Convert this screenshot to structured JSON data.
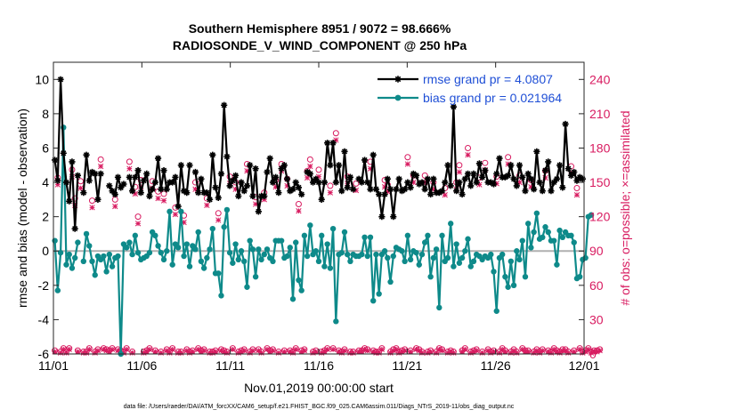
{
  "chart_data": {
    "type": "line",
    "title_line1": "Southern Hemisphere 8951 / 9072 = 98.666%",
    "title_line2": "RADIOSONDE_V_WIND_COMPONENT @ 250 hPa",
    "ylabel_left": "rmse and bias (model - observation)",
    "ylabel_right": "# of obs: o=possible; ×=assimilated",
    "xlabel": "Nov.01,2019 00:00:00 start",
    "footnote": "data file: /Users/raeder/DAI/ATM_forcXX/CAM6_setup/f.e21.FHIST_BGC.f09_025.CAM6assim.011/Diags_NTrS_2019-11/obs_diag_output.nc",
    "colors": {
      "rmse": "#000000",
      "bias": "#0e8a8a",
      "obs": "#d81b60",
      "zero_line": "#b0b0b0"
    },
    "x_ticks": [
      "11/01",
      "11/06",
      "11/11",
      "11/16",
      "11/21",
      "11/26",
      "12/01"
    ],
    "x_tick_days": [
      0,
      5,
      10,
      15,
      20,
      25,
      30
    ],
    "xlim_days": [
      0,
      30
    ],
    "y_left_ticks": [
      "10",
      "8",
      "6",
      "4",
      "2",
      "0",
      "-2",
      "-4",
      "-6"
    ],
    "y_left_values": [
      10,
      8,
      6,
      4,
      2,
      0,
      -2,
      -4,
      -6
    ],
    "ylim_left": [
      -6,
      11
    ],
    "y_right_ticks": [
      "240",
      "210",
      "180",
      "150",
      "120",
      "90",
      "60",
      "30",
      "0"
    ],
    "y_right_values": [
      240,
      210,
      180,
      150,
      120,
      90,
      60,
      30,
      0
    ],
    "ylim_right": [
      0,
      255
    ],
    "legend": [
      {
        "name": "rmse grand pr = 4.0807",
        "series": "rmse"
      },
      {
        "name": "bias grand pr = 0.021964",
        "series": "bias"
      }
    ],
    "series": [
      {
        "name": "rmse",
        "values": [
          5.3,
          4.1,
          10.0,
          5.7,
          4.0,
          2.9,
          5.2,
          1.3,
          4.4,
          null,
          3.4,
          5.6,
          4.1,
          4.6,
          4.5,
          3.0,
          4.5,
          null,
          null,
          3.8,
          3.5,
          3.3,
          4.3,
          3.7,
          3.9,
          null,
          4.3,
          3.5,
          4.3,
          4.7,
          3.4,
          4.1,
          4.5,
          3.2,
          3.6,
          4.0,
          5.4,
          3.6,
          4.7,
          3.6,
          4.0,
          4.0,
          4.3,
          2.6,
          5.0,
          3.5,
          3.4,
          5.0,
          null,
          4.6,
          3.4,
          4.2,
          3.4,
          3.4,
          3.0,
          5.6,
          3.7,
          3.1,
          4.5,
          8.5,
          5.5,
          3.8,
          4.1,
          4.4,
          3.2,
          4.0,
          3.5,
          3.8,
          5.0,
          3.2,
          4.8,
          2.3,
          3.2,
          3.2,
          4.6,
          5.4,
          4.0,
          4.3,
          3.4,
          4.8,
          5.0,
          4.2,
          3.5,
          3.6,
          4.0,
          3.7,
          3.3,
          null,
          4.6,
          4.5,
          4.0,
          4.2,
          4.0,
          3.0,
          4.0,
          6.3,
          5.0,
          6.3,
          4.0,
          5.0,
          3.5,
          5.8,
          3.7,
          4.3,
          3.6,
          null,
          4.2,
          4.0,
          5.3,
          4.0,
          3.6,
          5.6,
          3.6,
          3.3,
          2.0,
          3.3,
          4.2,
          3.6,
          2.0,
          3.6,
          4.2,
          3.5,
          3.6,
          4.0,
          3.7,
          4.5,
          4.4,
          3.9,
          4.0,
          3.6,
          4.2,
          3.3,
          4.2,
          3.4,
          3.4,
          3.5,
          4.0,
          5.0,
          3.8,
          8.4,
          3.5,
          4.0,
          3.3,
          4.2,
          4.5,
          3.8,
          4.5,
          4.0,
          5.1,
          4.3,
          4.7,
          4.0,
          4.0,
          3.9,
          4.5,
          5.4,
          4.3,
          4.3,
          4.4,
          5.0,
          4.2,
          3.8,
          5.0,
          4.3,
          3.5,
          4.5,
          4.2,
          3.6,
          5.8,
          4.0,
          3.5,
          4.7,
          5.2,
          3.5,
          4.0,
          4.2,
          5.0,
          3.7,
          7.4,
          4.8,
          4.4,
          4.6,
          4.1,
          4.3,
          4.2
        ]
      },
      {
        "name": "bias",
        "values": [
          0.6,
          -2.3,
          -0.1,
          7.2,
          -0.8,
          -0.2,
          -1.0,
          -0.4,
          0.5,
          null,
          -0.6,
          1.0,
          0.3,
          -0.6,
          -1.4,
          -0.3,
          -0.5,
          -0.3,
          -1.2,
          -0.2,
          -0.9,
          -0.4,
          -0.3,
          -6.0,
          0.4,
          0.2,
          0.5,
          -0.2,
          0.9,
          -0.1,
          -0.5,
          -0.4,
          -0.3,
          -0.1,
          1.1,
          0.9,
          0.3,
          -0.1,
          -0.5,
          0.0,
          2.3,
          -0.8,
          0.4,
          0.2,
          2.3,
          -0.3,
          0.4,
          -0.9,
          0.3,
          0.1,
          1.1,
          -0.6,
          -1.0,
          -0.4,
          0.1,
          1.3,
          -1.3,
          -1.3,
          -2.6,
          1.4,
          2.4,
          -0.1,
          -0.7,
          0.4,
          -0.5,
          0.0,
          -0.6,
          -2.1,
          0.6,
          0.1,
          -1.5,
          0.1,
          -0.5,
          -0.2,
          0.1,
          -0.4,
          -0.6,
          0.6,
          0.6,
          0.6,
          -0.4,
          -0.3,
          0.2,
          -2.8,
          0.5,
          -1.7,
          -2.3,
          0.9,
          -0.3,
          1.5,
          -0.2,
          0.0,
          -0.6,
          0.9,
          -0.9,
          0.4,
          -1.0,
          1.3,
          -4.1,
          -0.2,
          -0.1,
          1.1,
          -0.2,
          -0.6,
          -0.2,
          -0.3,
          -0.3,
          -0.2,
          0.8,
          -0.3,
          0.8,
          -2.9,
          -0.2,
          -2.5,
          -0.2,
          0.0,
          -0.4,
          -1.8,
          -0.3,
          0.2,
          0.1,
          0.0,
          -0.6,
          0.9,
          -0.5,
          0.0,
          -0.1,
          -0.8,
          -0.2,
          0.5,
          0.9,
          -1.5,
          -0.4,
          0.1,
          -3.3,
          0.9,
          -0.6,
          -0.4,
          1.6,
          -0.9,
          0.4,
          -0.7,
          -0.4,
          0.0,
          0.7,
          -0.9,
          -0.6,
          -0.2,
          -0.3,
          -0.5,
          -0.3,
          -0.4,
          -0.2,
          -1.2,
          -3.5,
          -0.4,
          -0.2,
          -1.5,
          -2.1,
          -0.6,
          -2.0,
          0.0,
          -0.5,
          0.6,
          -1.5,
          1.6,
          0.2,
          1.1,
          2.2,
          0.7,
          0.8,
          1.4,
          1.1,
          0.6,
          0.6,
          -0.8,
          1.2,
          0.8,
          1.1,
          0.9,
          0.9,
          0.5,
          -1.6,
          -1.5,
          -0.5,
          -0.4,
          2.0,
          2.1
        ]
      },
      {
        "name": "obs_possible",
        "values": [
          3,
          154,
          2,
          5,
          2,
          5,
          161,
          136,
          3,
          151,
          2,
          2,
          5,
          134,
          2,
          4,
          170,
          5,
          4,
          3,
          5,
          135,
          4,
          3,
          2,
          5,
          168,
          2,
          146,
          120,
          152,
          2,
          3,
          5,
          151,
          3,
          142,
          2,
          140,
          4,
          2,
          5,
          128,
          2,
          2,
          121,
          4,
          2,
          3,
          150,
          5,
          3,
          4,
          136,
          2,
          2,
          3,
          123,
          4,
          3,
          2,
          155,
          5,
          150,
          2,
          3,
          4,
          166,
          2,
          4,
          137,
          4,
          2,
          141,
          5,
          3,
          4,
          152,
          2,
          166,
          3,
          153,
          3,
          2,
          5,
          131,
          3,
          4,
          160,
          170,
          2,
          3,
          161,
          2,
          3,
          5,
          147,
          5,
          193,
          3,
          2,
          4,
          155,
          2,
          2,
          149,
          3,
          3,
          5,
          4,
          168,
          3,
          2,
          2,
          5,
          152,
          148,
          2,
          4,
          5,
          2,
          3,
          4,
          172,
          3,
          156,
          5,
          4,
          2,
          156,
          2,
          3,
          150,
          2,
          5,
          4,
          145,
          2,
          3,
          2,
          150,
          165,
          3,
          5,
          180,
          2,
          3,
          4,
          154,
          2,
          167,
          4,
          2,
          3,
          155,
          2,
          5,
          3,
          172,
          2,
          4,
          2,
          156,
          5,
          3,
          3,
          152,
          2,
          4,
          2,
          4,
          160,
          3,
          2,
          5,
          3,
          2,
          4,
          4,
          2,
          164,
          3,
          145,
          5,
          2,
          3,
          5,
          2,
          3,
          3,
          4
        ]
      },
      {
        "name": "obs_assimilated",
        "values": [
          2,
          148,
          1,
          4,
          1,
          4,
          155,
          130,
          2,
          145,
          1,
          1,
          4,
          128,
          1,
          3,
          164,
          4,
          3,
          2,
          4,
          129,
          3,
          2,
          1,
          4,
          162,
          1,
          140,
          114,
          146,
          1,
          2,
          4,
          145,
          2,
          136,
          1,
          134,
          3,
          1,
          4,
          122,
          1,
          1,
          115,
          3,
          1,
          2,
          144,
          4,
          2,
          3,
          130,
          1,
          1,
          2,
          117,
          3,
          2,
          1,
          149,
          4,
          144,
          1,
          2,
          3,
          160,
          1,
          3,
          131,
          3,
          1,
          135,
          4,
          2,
          3,
          146,
          1,
          160,
          2,
          147,
          2,
          1,
          4,
          125,
          2,
          3,
          154,
          164,
          1,
          2,
          155,
          1,
          2,
          4,
          141,
          4,
          187,
          2,
          1,
          3,
          149,
          1,
          1,
          143,
          2,
          2,
          4,
          3,
          162,
          2,
          1,
          1,
          4,
          146,
          142,
          1,
          3,
          4,
          1,
          2,
          3,
          166,
          2,
          150,
          4,
          3,
          1,
          150,
          1,
          2,
          144,
          1,
          4,
          3,
          139,
          1,
          2,
          1,
          144,
          159,
          2,
          4,
          174,
          1,
          2,
          3,
          148,
          1,
          161,
          3,
          1,
          2,
          149,
          1,
          4,
          2,
          166,
          1,
          3,
          1,
          150,
          4,
          2,
          2,
          146,
          1,
          3,
          1,
          3,
          154,
          2,
          1,
          4,
          2,
          1,
          3,
          3,
          1,
          158,
          2,
          139,
          4,
          1,
          2,
          4,
          1,
          2,
          2,
          3
        ]
      }
    ]
  }
}
